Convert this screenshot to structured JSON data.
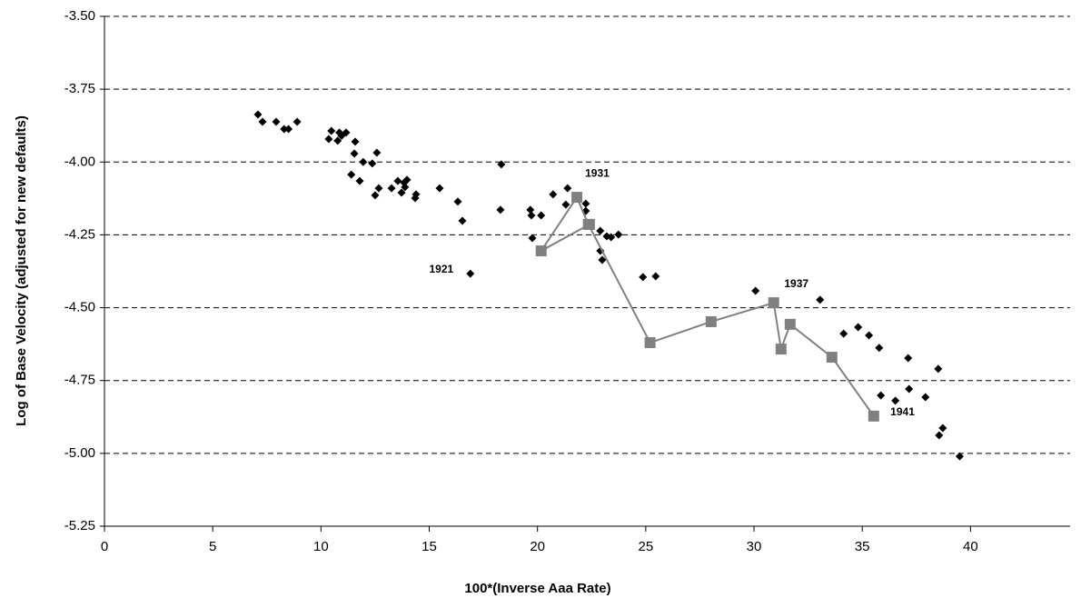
{
  "chart_data": {
    "type": "scatter",
    "xlabel": "100*(Inverse Aaa Rate)",
    "ylabel": "Log of Base Velocity (adjusted for new defaults)",
    "xlim": [
      0,
      44.6
    ],
    "ylim": [
      -5.25,
      -3.5
    ],
    "xticks": [
      0,
      5,
      10,
      15,
      20,
      25,
      30,
      35,
      40
    ],
    "yticks": [
      {
        "value": -5.25,
        "label": "-5.25"
      },
      {
        "value": -5.0,
        "label": "-5.00"
      },
      {
        "value": -4.75,
        "label": "-4.75"
      },
      {
        "value": -4.5,
        "label": "-4.50"
      },
      {
        "value": -4.25,
        "label": "-4.25"
      },
      {
        "value": -4.0,
        "label": "-4.00"
      },
      {
        "value": -3.75,
        "label": "-3.75"
      },
      {
        "value": -3.5,
        "label": "-3.50"
      }
    ],
    "grid": true,
    "series": [
      {
        "marker": "diamond",
        "color": "#000000",
        "line": false,
        "x": [
          7.09,
          7.3,
          7.93,
          8.3,
          8.5,
          8.9,
          10.36,
          10.48,
          10.77,
          10.85,
          10.95,
          11.16,
          11.54,
          11.58,
          11.4,
          11.79,
          11.95,
          12.37,
          12.58,
          12.5,
          12.67,
          13.26,
          13.55,
          13.72,
          13.84,
          13.88,
          13.97,
          14.35,
          14.39,
          15.48,
          16.32,
          16.53,
          16.9,
          18.33,
          18.29,
          19.67,
          19.72,
          19.76,
          20.17,
          20.72,
          21.31,
          21.39,
          22.23,
          22.23,
          22.9,
          22.9,
          22.99,
          23.2,
          23.4,
          23.74,
          24.87,
          25.46,
          30.07,
          33.05,
          34.14,
          34.81,
          35.31,
          35.78,
          35.86,
          36.53,
          37.12,
          37.16,
          37.92,
          38.51,
          38.55,
          38.72,
          39.5
        ],
        "y": [
          -3.837,
          -3.862,
          -3.862,
          -3.887,
          -3.887,
          -3.862,
          -3.921,
          -3.893,
          -3.927,
          -3.899,
          -3.91,
          -3.899,
          -3.971,
          -3.93,
          -4.043,
          -4.065,
          -4.0,
          -4.005,
          -3.968,
          -4.114,
          -4.09,
          -4.09,
          -4.065,
          -4.105,
          -4.071,
          -4.086,
          -4.061,
          -4.124,
          -4.111,
          -4.09,
          -4.136,
          -4.202,
          -4.383,
          -4.008,
          -4.164,
          -4.164,
          -4.183,
          -4.261,
          -4.183,
          -4.111,
          -4.146,
          -4.09,
          -4.143,
          -4.168,
          -4.236,
          -4.305,
          -4.336,
          -4.255,
          -4.258,
          -4.249,
          -4.395,
          -4.392,
          -4.442,
          -4.473,
          -4.589,
          -4.567,
          -4.595,
          -4.638,
          -4.801,
          -4.819,
          -4.673,
          -4.779,
          -4.807,
          -4.71,
          -4.938,
          -4.913,
          -5.01
        ]
      },
      {
        "marker": "square",
        "color": "#808080",
        "line": true,
        "x": [
          22.4,
          20.17,
          21.82,
          22.35,
          25.2,
          28.02,
          30.91,
          31.25,
          31.67,
          33.6,
          35.53
        ],
        "y": [
          -4.214,
          -4.305,
          -4.121,
          -4.214,
          -4.62,
          -4.548,
          -4.483,
          -4.642,
          -4.557,
          -4.67,
          -4.872
        ]
      }
    ],
    "annotations": [
      {
        "text": "1931",
        "x": 22.2,
        "y": -4.04
      },
      {
        "text": "1921",
        "x": 15.0,
        "y": -4.37
      },
      {
        "text": "1937",
        "x": 31.4,
        "y": -4.42
      },
      {
        "text": "1941",
        "x": 36.3,
        "y": -4.86
      }
    ]
  }
}
